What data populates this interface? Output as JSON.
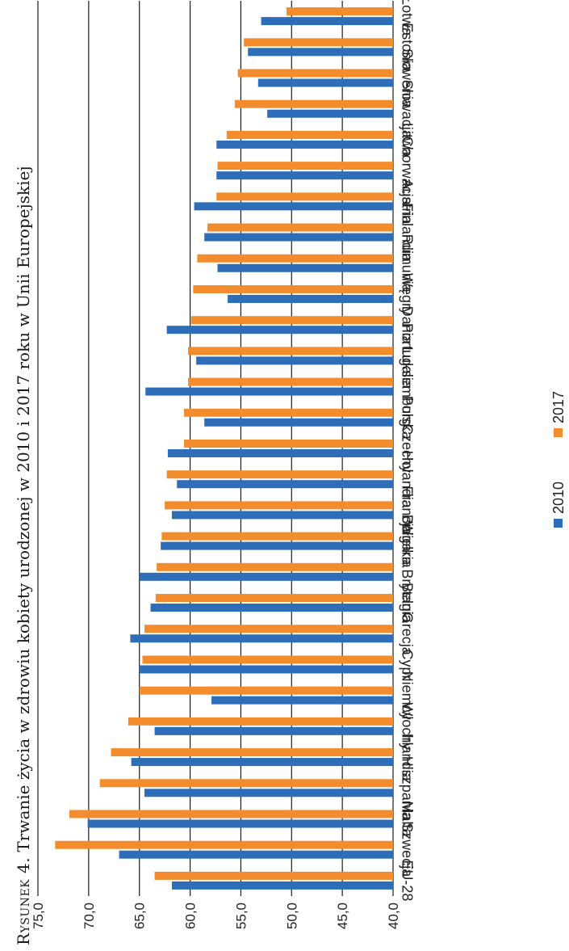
{
  "caption": {
    "prefix": "Rysunek 4.",
    "text": "Trwanie życia w zdrowiu kobiety urodzonej w 2010 i 2017 roku w Unii Europejskiej"
  },
  "chart_data": {
    "type": "bar",
    "orientation": "horizontal",
    "rotated": "90deg counter-clockwise on page",
    "title": "",
    "xlabel": "",
    "ylabel": "",
    "xlim": [
      40,
      75
    ],
    "tick_labels": [
      "40,0",
      "45,0",
      "50,0",
      "55,0",
      "60,0",
      "65,0",
      "70,0",
      "75,0"
    ],
    "grid": true,
    "legend_position": "right",
    "categories": [
      "EU-28",
      "Szwecja",
      "Malta",
      "Hiszpania",
      "Irlandia",
      "Włochy",
      "Niemcy",
      "Cypr",
      "Grecja",
      "Belgia",
      "Wielka Brytania",
      "Bułgaria",
      "Francja",
      "Holandia",
      "Czechy",
      "Polska",
      "Luksemburg",
      "Portugalia",
      "Dania",
      "Węgry",
      "Rumunia",
      "Finlandia",
      "Austria",
      "Chorwacja",
      "Litwa",
      "Słowacja",
      "Słowenia",
      "Estonia",
      "Łotwa"
    ],
    "series": [
      {
        "name": "2010",
        "color": "#2E6DB8",
        "values": [
          61.8,
          67.0,
          70.1,
          64.5,
          65.8,
          63.5,
          57.9,
          65.0,
          65.9,
          63.9,
          65.0,
          62.9,
          61.8,
          61.3,
          62.2,
          58.6,
          64.4,
          59.4,
          62.3,
          56.3,
          57.3,
          58.6,
          59.6,
          57.4,
          57.4,
          52.4,
          53.3,
          54.3,
          53.0
        ]
      },
      {
        "name": "2017",
        "color": "#F28C2C",
        "values": [
          63.5,
          73.3,
          71.9,
          68.9,
          67.8,
          66.1,
          65.0,
          64.7,
          64.5,
          63.4,
          63.3,
          62.8,
          62.5,
          62.3,
          60.6,
          60.6,
          60.2,
          60.2,
          59.9,
          59.7,
          59.3,
          58.3,
          57.4,
          57.3,
          56.4,
          55.6,
          55.3,
          54.7,
          50.5
        ]
      }
    ]
  }
}
